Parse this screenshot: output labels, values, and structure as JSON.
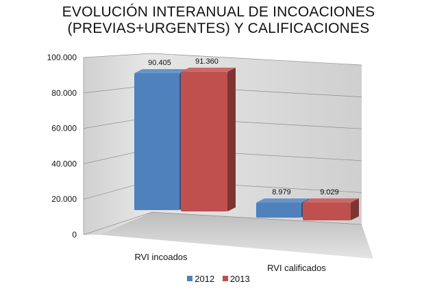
{
  "title_line1": "EVOLUCIÓN INTERANUAL DE INCOACIONES",
  "title_line2": "(PREVIAS+URGENTES) Y CALIFICACIONES",
  "colors": {
    "s2012": "#4f81bd",
    "s2013": "#c0504d",
    "wall": "#d9d9d9",
    "floor": "#cfcfcf"
  },
  "chart_data": {
    "type": "bar",
    "categories": [
      "RVI incoados",
      "RVI calificados"
    ],
    "series": [
      {
        "name": "2012",
        "values": [
          90405,
          8979
        ],
        "labels": [
          "90.405",
          "8.979"
        ]
      },
      {
        "name": "2013",
        "values": [
          91360,
          9029
        ],
        "labels": [
          "91.360",
          "9.029"
        ]
      }
    ],
    "ylim": [
      0,
      100000
    ],
    "y_ticks": [
      "0",
      "20.000",
      "40.000",
      "60.000",
      "80.000",
      "100.000"
    ],
    "y_tick_values": [
      0,
      20000,
      40000,
      60000,
      80000,
      100000
    ],
    "grid": true,
    "legend": "bottom"
  }
}
